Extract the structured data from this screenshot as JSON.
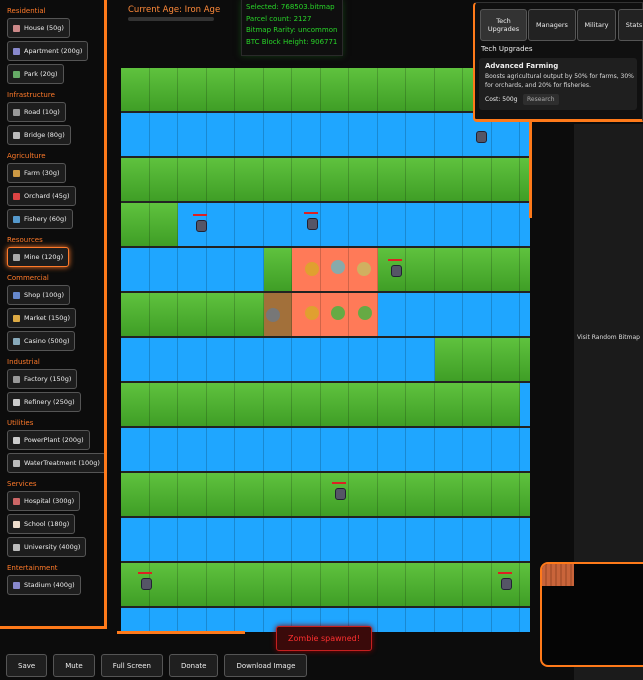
{
  "sidebar": {
    "sections": [
      {
        "title": "Residential",
        "items": [
          "House (50g)",
          "Apartment (200g)",
          "Park (20g)"
        ]
      },
      {
        "title": "Infrastructure",
        "items": [
          "Road (10g)",
          "Bridge (80g)"
        ]
      },
      {
        "title": "Agriculture",
        "items": [
          "Farm (30g)",
          "Orchard (45g)",
          "Fishery (60g)"
        ]
      },
      {
        "title": "Resources",
        "items": [
          "Mine (120g)"
        ]
      },
      {
        "title": "Commercial",
        "items": [
          "Shop (100g)",
          "Market (150g)",
          "Casino (500g)"
        ]
      },
      {
        "title": "Industrial",
        "items": [
          "Factory (150g)",
          "Refinery (250g)"
        ]
      },
      {
        "title": "Utilities",
        "items": [
          "PowerPlant (200g)",
          "WaterTreatment (100g)"
        ]
      },
      {
        "title": "Services",
        "items": [
          "Hospital (300g)",
          "School (180g)",
          "University (400g)"
        ]
      },
      {
        "title": "Entertainment",
        "items": [
          "Stadium (400g)"
        ]
      }
    ]
  },
  "age": "Current Age: Iron Age",
  "info": [
    "Selected: 768503.bitmap",
    "Parcel count: 2127",
    "Bitmap Rarity: uncommon",
    "BTC Block Height: 906771"
  ],
  "panel": {
    "tabs": [
      "Tech Upgrades",
      "Managers",
      "Military",
      "Stats"
    ],
    "heading": "Tech Upgrades",
    "card": {
      "title": "Advanced Farming",
      "description": "Boosts agricultural output by 50% for farms, 30% for orchards, and 20% for fisheries.",
      "cost": "Cost: 500g",
      "button": "Research"
    }
  },
  "visit": "Visit Random Bitmap",
  "notification": "Zombie spawned!",
  "buttons": [
    "Save",
    "Mute",
    "Full Screen",
    "Donate",
    "Download Image"
  ]
}
